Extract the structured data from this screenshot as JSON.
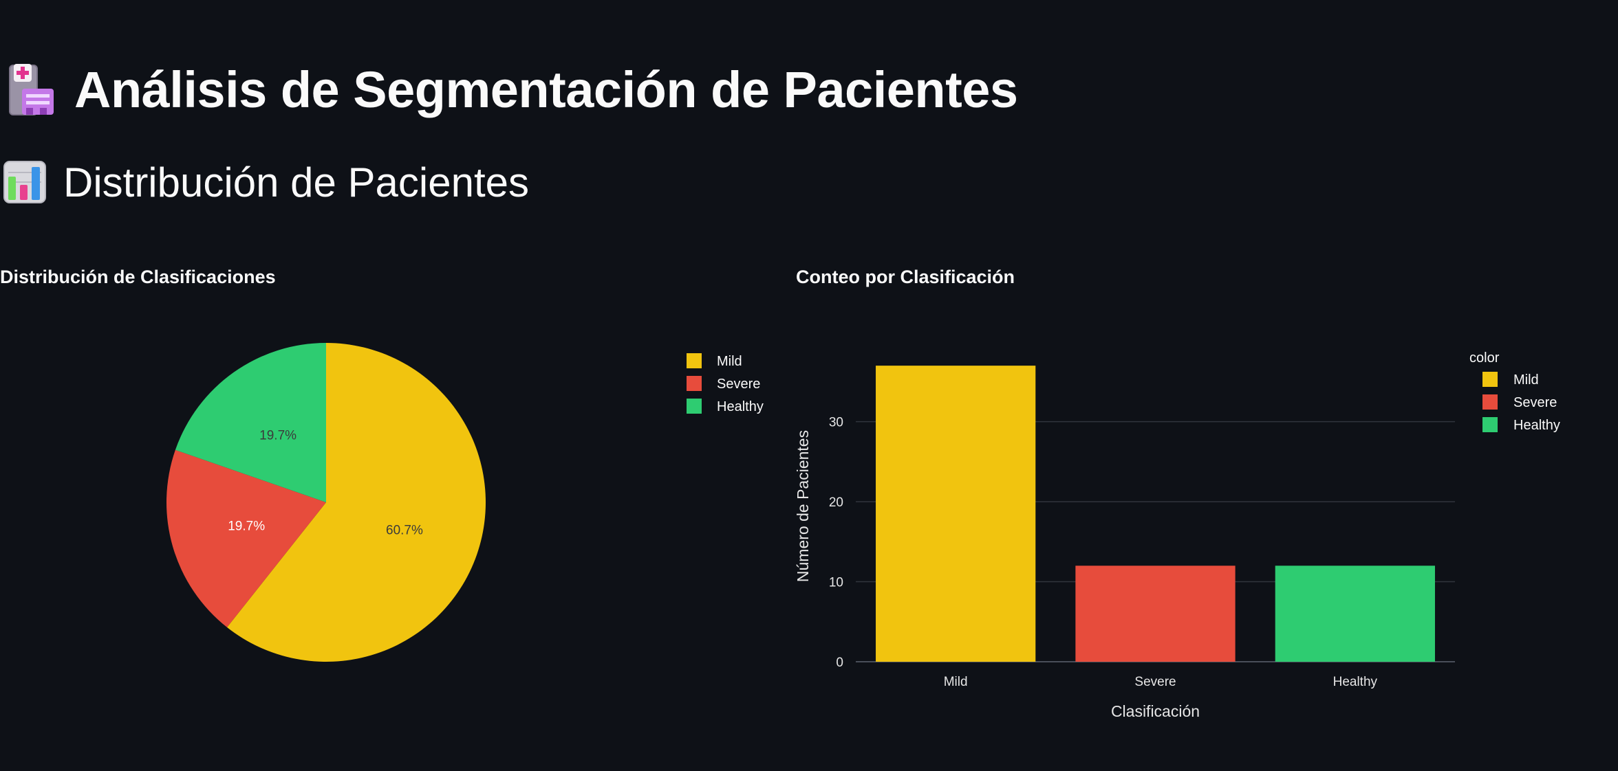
{
  "header": {
    "title": "Análisis de Segmentación de Pacientes",
    "icon": "hospital-icon"
  },
  "section": {
    "title": "Distribución de Pacientes",
    "icon": "bar-chart-icon"
  },
  "colors": {
    "Mild": "#f1c40f",
    "Severe": "#e74c3c",
    "Healthy": "#2ecc71",
    "background": "#0e1117",
    "text": "#fafafa"
  },
  "chart_data": [
    {
      "type": "pie",
      "title": "Distribución de Clasificaciones",
      "labels": [
        "Mild",
        "Severe",
        "Healthy"
      ],
      "values": [
        37,
        12,
        12
      ],
      "percent_labels": [
        "60.7%",
        "19.7%",
        "19.7%"
      ],
      "legend": {
        "placement": "top-right",
        "entries": [
          "Mild",
          "Severe",
          "Healthy"
        ]
      }
    },
    {
      "type": "bar",
      "title": "Conteo por Clasificación",
      "categories": [
        "Mild",
        "Severe",
        "Healthy"
      ],
      "values": [
        37,
        12,
        12
      ],
      "xlabel": "Clasificación",
      "ylabel": "Número de Pacientes",
      "ylim": [
        0,
        38.9
      ],
      "yticks": [
        0,
        10,
        20,
        30
      ],
      "grid": true,
      "legend": {
        "title": "color",
        "placement": "top-right",
        "entries": [
          "Mild",
          "Severe",
          "Healthy"
        ]
      }
    }
  ]
}
